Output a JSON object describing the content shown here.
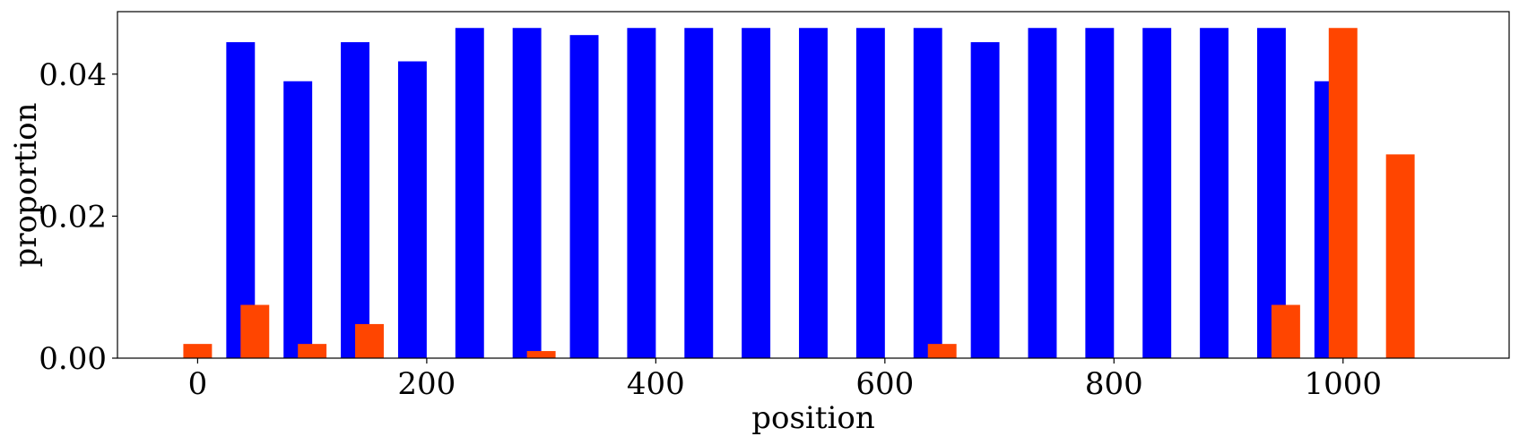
{
  "chart_data": {
    "type": "bar",
    "xlabel": "position",
    "ylabel": "proportion",
    "xlim": [
      -70,
      1145
    ],
    "ylim": [
      0,
      0.0488
    ],
    "xticks": [
      0,
      200,
      400,
      600,
      800,
      1000
    ],
    "xtick_labels": [
      "0",
      "200",
      "400",
      "600",
      "800",
      "1000"
    ],
    "yticks": [
      0,
      0.02,
      0.04
    ],
    "ytick_labels": [
      "0.00",
      "0.02",
      "0.04"
    ],
    "grid": false,
    "bar_width": 25,
    "series": [
      {
        "color": "#0000ff",
        "x": [
          37.5,
          87.5,
          137.5,
          187.5,
          237.5,
          287.5,
          337.5,
          387.5,
          437.5,
          487.5,
          537.5,
          587.5,
          637.5,
          687.5,
          737.5,
          787.5,
          837.5,
          887.5,
          937.5,
          987.5
        ],
        "values": [
          0.0445,
          0.039,
          0.0445,
          0.0418,
          0.0465,
          0.0465,
          0.0455,
          0.0465,
          0.0465,
          0.0465,
          0.0465,
          0.0465,
          0.0465,
          0.0445,
          0.0465,
          0.0465,
          0.0465,
          0.0465,
          0.0465,
          0.039
        ]
      },
      {
        "color": "#ff4500",
        "x": [
          0,
          50,
          100,
          150,
          300,
          650,
          950,
          1000,
          1050
        ],
        "values": [
          0.002,
          0.0075,
          0.002,
          0.0048,
          0.001,
          0.002,
          0.0075,
          0.0465,
          0.0287
        ]
      }
    ]
  }
}
